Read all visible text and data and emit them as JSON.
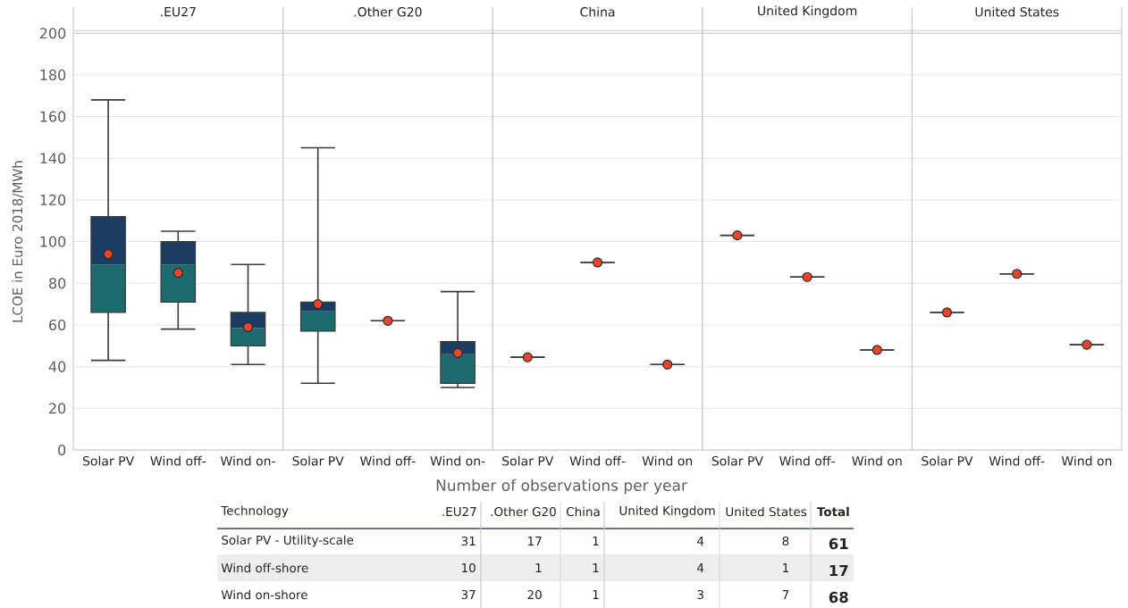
{
  "chart_data": [
    {
      "type": "box",
      "title": ".EU27",
      "ylabel": "LCOE in Euro 2018/MWh",
      "categories": [
        "Solar PV",
        "Wind off-",
        "Wind on-"
      ],
      "ylim": [
        0,
        200
      ],
      "yticks": [
        0,
        20,
        40,
        60,
        80,
        100,
        120,
        140,
        160,
        180,
        200
      ],
      "grid": "y",
      "colors": [
        "#1d6b6e",
        "#1d6b6e",
        "#1d6b6e"
      ],
      "boxes": [
        {
          "low": 43,
          "q1": 66,
          "median": 89,
          "q3": 112,
          "high": 168,
          "mean": 94
        },
        {
          "low": 58,
          "q1": 71,
          "median": 89,
          "q3": 100,
          "high": 105,
          "mean": 85
        },
        {
          "low": 41,
          "q1": 50,
          "median": 58.5,
          "q3": 66,
          "high": 89,
          "mean": 59
        }
      ]
    },
    {
      "type": "box",
      "title": ".Other G20",
      "categories": [
        "Solar PV",
        "Wind off-",
        "Wind on-"
      ],
      "ylim": [
        0,
        200
      ],
      "yticks": [
        0,
        20,
        40,
        60,
        80,
        100,
        120,
        140,
        160,
        180,
        200
      ],
      "tick_labels": "x",
      "grid": "y",
      "colors": [
        "#1d6b6e",
        null,
        "#1d6b6e"
      ],
      "boxes": [
        {
          "low": 32,
          "q1": 57,
          "median": 66.5,
          "q3": 71,
          "high": 145,
          "mean": 70
        },
        {
          "low": 62,
          "q1": 62,
          "median": 62,
          "q3": 62,
          "high": 62,
          "mean": 62
        },
        {
          "low": 30,
          "q1": 32,
          "median": 46,
          "q3": 52,
          "high": 76,
          "mean": 46.5
        }
      ]
    },
    {
      "type": "box",
      "title": "China",
      "categories": [
        "Solar PV",
        "Wind off-",
        "Wind on"
      ],
      "ylim": [
        0,
        200
      ],
      "yticks": [
        0,
        20,
        40,
        60,
        80,
        100,
        120,
        140,
        160,
        180,
        200
      ],
      "tick_labels": "x",
      "grid": "y",
      "boxes": [
        {
          "low": 44.5,
          "q1": 44.5,
          "median": 44.5,
          "q3": 44.5,
          "high": 44.5,
          "mean": 44.5
        },
        {
          "low": 90,
          "q1": 90,
          "median": 90,
          "q3": 90,
          "high": 90,
          "mean": 90
        },
        {
          "low": 41,
          "q1": 41,
          "median": 41,
          "q3": 41,
          "high": 41,
          "mean": 41
        }
      ]
    },
    {
      "type": "box",
      "title": "United Kingdom",
      "categories": [
        "Solar PV",
        "Wind off-",
        "Wind on"
      ],
      "ylim": [
        0,
        200
      ],
      "yticks": [
        0,
        20,
        40,
        60,
        80,
        100,
        120,
        140,
        160,
        180,
        200
      ],
      "tick_labels": "x",
      "grid": "y",
      "boxes": [
        {
          "low": 103,
          "q1": 103,
          "median": 103,
          "q3": 103,
          "high": 103,
          "mean": 103
        },
        {
          "low": 83,
          "q1": 83,
          "median": 83,
          "q3": 83,
          "high": 83,
          "mean": 83
        },
        {
          "low": 48,
          "q1": 48,
          "median": 48,
          "q3": 48,
          "high": 48,
          "mean": 48
        }
      ]
    },
    {
      "type": "box",
      "title": "United States",
      "categories": [
        "Solar PV",
        "Wind off-",
        "Wind on"
      ],
      "ylim": [
        0,
        200
      ],
      "yticks": [
        0,
        20,
        40,
        60,
        80,
        100,
        120,
        140,
        160,
        180,
        200
      ],
      "tick_labels": "x",
      "grid": "y",
      "boxes": [
        {
          "low": 66,
          "q1": 66,
          "median": 66,
          "q3": 66,
          "high": 66,
          "mean": 66
        },
        {
          "low": 84.5,
          "q1": 84.5,
          "median": 84.5,
          "q3": 84.5,
          "high": 84.5,
          "mean": 84.5
        },
        {
          "low": 50.5,
          "q1": 50.5,
          "median": 50.5,
          "q3": 50.5,
          "high": 50.5,
          "mean": 50.5
        }
      ]
    },
    {
      "type": "heatmap",
      "title": "Number of observations per year",
      "ylabel": "Technology",
      "categories": [
        ".EU27",
        ".Other G20",
        "China",
        "United Kingdom",
        "United States",
        "Total"
      ],
      "y_categories": [
        "Solar PV - Utility-scale",
        "Wind off-shore",
        "Wind on-shore"
      ],
      "data_labels": true,
      "cells": [
        [
          31,
          17,
          1,
          4,
          8,
          61
        ],
        [
          10,
          1,
          1,
          4,
          1,
          17
        ],
        [
          37,
          20,
          1,
          3,
          7,
          68
        ]
      ]
    }
  ]
}
